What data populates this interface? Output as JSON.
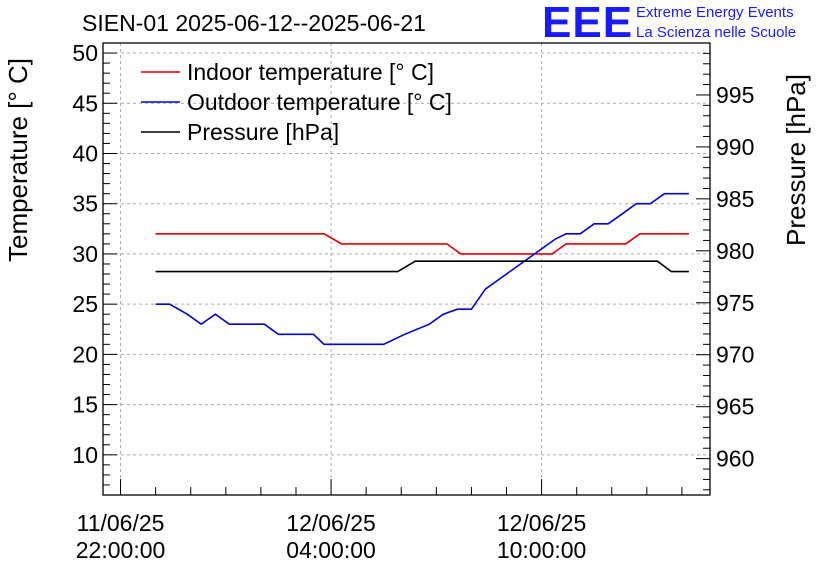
{
  "header": {
    "title": "SIEN-01 2025-06-12--2025-06-21",
    "logo_text": "EEE",
    "org_line1": "Extreme Energy Events",
    "org_line2": "La Scienza nelle Scuole"
  },
  "colors": {
    "indoor": "#e00000",
    "outdoor": "#0000e0",
    "pressure": "#000000",
    "grid": "#aaaaaa"
  },
  "chart_data": {
    "type": "line",
    "title": "SIEN-01 2025-06-12--2025-06-21",
    "ylabel": "Temperature [° C]",
    "y2label": "Pressure [hPa]",
    "ylim": [
      6,
      51
    ],
    "y2lim": [
      956.5,
      1000
    ],
    "yticks": [
      10,
      15,
      20,
      25,
      30,
      35,
      40,
      45,
      50
    ],
    "y2ticks": [
      960,
      965,
      970,
      975,
      980,
      985,
      990,
      995
    ],
    "xlim_hours": [
      -0.5,
      16.8
    ],
    "xticks": [
      {
        "hour": 0,
        "date": "11/06/25",
        "time": "22:00:00"
      },
      {
        "hour": 6,
        "date": "12/06/25",
        "time": "04:00:00"
      },
      {
        "hour": 12,
        "date": "12/06/25",
        "time": "10:00:00"
      }
    ],
    "legend_position": "top-left",
    "series": [
      {
        "name": "Indoor temperature [° C]",
        "axis": "left",
        "x": [
          1,
          5.8,
          6.3,
          9.3,
          9.7,
          12.3,
          12.7,
          14.4,
          14.8,
          16.2
        ],
        "values": [
          32,
          32,
          31,
          31,
          30,
          30,
          31,
          31,
          32,
          32
        ]
      },
      {
        "name": "Outdoor temperature [° C]",
        "axis": "left",
        "x": [
          1,
          1.4,
          1.9,
          2.3,
          2.7,
          3.1,
          3.5,
          4.1,
          4.5,
          5.1,
          5.5,
          5.8,
          6.3,
          7.5,
          8.1,
          8.8,
          9.2,
          9.6,
          10.0,
          10.4,
          10.8,
          11.2,
          11.6,
          12.0,
          12.4,
          12.7,
          13.1,
          13.5,
          13.9,
          14.3,
          14.7,
          15.1,
          15.5,
          15.8,
          16.2
        ],
        "values": [
          25,
          25,
          24,
          23,
          24,
          23,
          23,
          23,
          22,
          22,
          22,
          21,
          21,
          21,
          22,
          23,
          24,
          24.5,
          24.5,
          26.5,
          27.5,
          28.5,
          29.5,
          30.5,
          31.5,
          32,
          32,
          33,
          33,
          34,
          35,
          35,
          36,
          36,
          36
        ]
      },
      {
        "name": "Pressure [hPa]",
        "axis": "right",
        "x": [
          1,
          7.9,
          8.4,
          15.3,
          15.7,
          16.2
        ],
        "values": [
          978,
          978,
          979,
          979,
          978,
          978
        ]
      }
    ]
  }
}
